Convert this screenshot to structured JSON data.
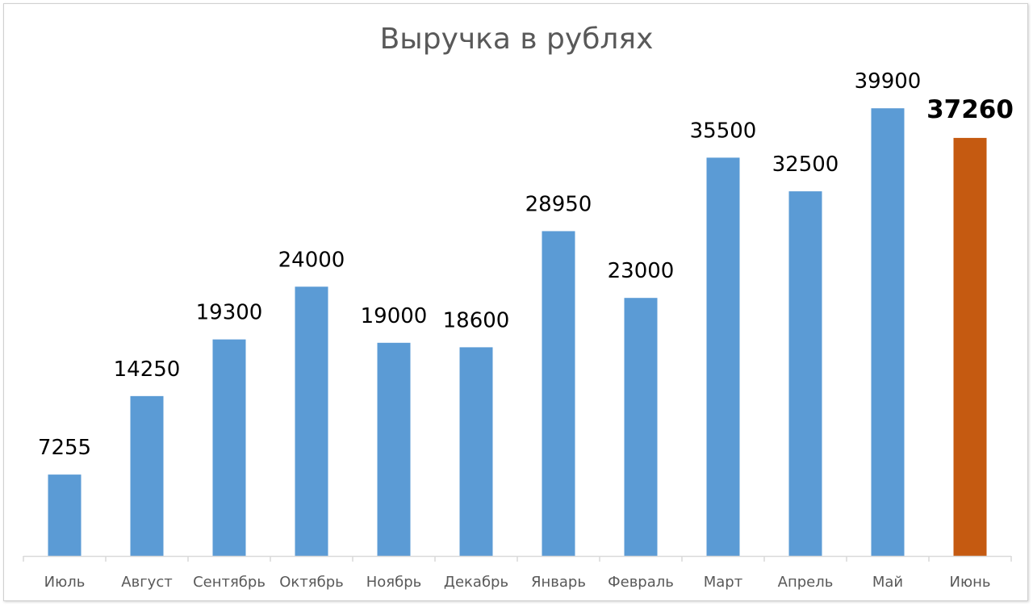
{
  "chart_data": {
    "type": "bar",
    "title": "Выручка в рублях",
    "xlabel": "",
    "ylabel": "",
    "ylim": [
      0,
      42000
    ],
    "grid": false,
    "legend": "none",
    "categories": [
      "Июль",
      "Август",
      "Сентябрь",
      "Октябрь",
      "Ноябрь",
      "Декабрь",
      "Январь",
      "Февраль",
      "Март",
      "Апрель",
      "Май",
      "Июнь"
    ],
    "values": [
      7255,
      14250,
      19300,
      24000,
      19000,
      18600,
      28950,
      23000,
      35500,
      32500,
      39900,
      37260
    ],
    "data_labels": [
      "7255",
      "14250",
      "19300",
      "24000",
      "19000",
      "18600",
      "28950",
      "23000",
      "35500",
      "32500",
      "39900",
      "37260"
    ],
    "highlight_index": 11,
    "colors": {
      "bar": "#5b9bd5",
      "highlight_bar": "#c55a11",
      "axis": "#d9d9d9"
    }
  }
}
